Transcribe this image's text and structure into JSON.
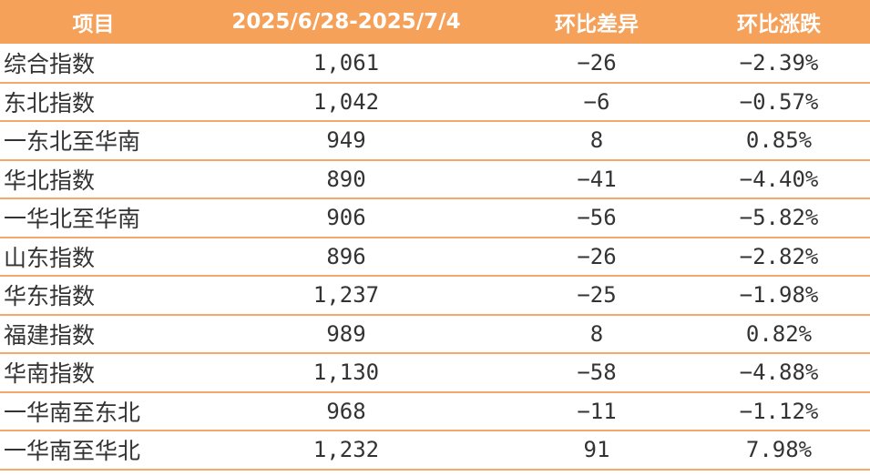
{
  "table": {
    "headers": [
      "项目",
      "2025/6/28-2025/7/4",
      "环比差异",
      "环比涨跌"
    ],
    "rows": [
      [
        "综合指数",
        "1,061",
        "−26",
        "−2.39%"
      ],
      [
        "东北指数",
        "1,042",
        "−6",
        "−0.57%"
      ],
      [
        "一东北至华南",
        "949",
        "8",
        "0.85%"
      ],
      [
        "华北指数",
        "890",
        "−41",
        "−4.40%"
      ],
      [
        "一华北至华南",
        "906",
        "−56",
        "−5.82%"
      ],
      [
        "山东指数",
        "896",
        "−26",
        "−2.82%"
      ],
      [
        "华东指数",
        "1,237",
        "−25",
        "−1.98%"
      ],
      [
        "福建指数",
        "989",
        "8",
        "0.82%"
      ],
      [
        "华南指数",
        "1,130",
        "−58",
        "−4.88%"
      ],
      [
        "一华南至东北",
        "968",
        "−11",
        "−1.12%"
      ],
      [
        "一华南至华北",
        "1,232",
        "91",
        "7.98%"
      ]
    ]
  },
  "colors": {
    "header_bg": "#f5a15a",
    "header_text": "#ffffff",
    "row_border": "#f6a86a",
    "cell_text": "#333333"
  }
}
